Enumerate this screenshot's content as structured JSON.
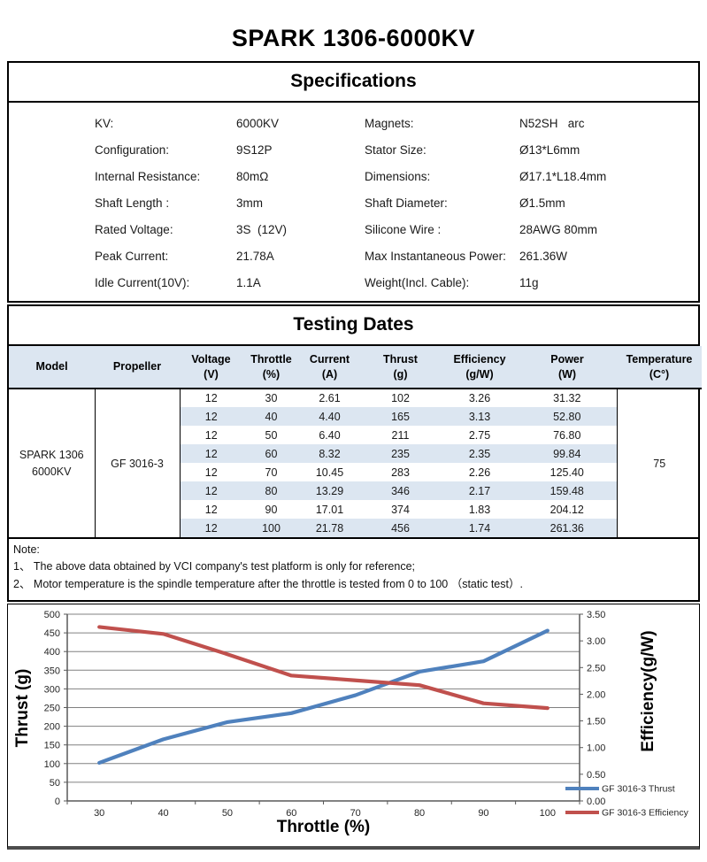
{
  "page": {
    "title": "SPARK 1306-6000KV"
  },
  "specifications": {
    "header": "Specifications",
    "rows": [
      {
        "l_label": "KV:",
        "l_value": "6000KV",
        "r_label": "Magnets:",
        "r_value": "N52SH   arc"
      },
      {
        "l_label": "Configuration:",
        "l_value": "9S12P",
        "r_label": "Stator Size:",
        "r_value": "Ø13*L6mm"
      },
      {
        "l_label": "Internal Resistance:",
        "l_value": "80mΩ",
        "r_label": "Dimensions:",
        "r_value": "Ø17.1*L18.4mm"
      },
      {
        "l_label": "Shaft Length :",
        "l_value": "3mm",
        "r_label": "Shaft Diameter:",
        "r_value": "Ø1.5mm"
      },
      {
        "l_label": "Rated Voltage:",
        "l_value": "3S  (12V)",
        "r_label": "Silicone Wire :",
        "r_value": "28AWG 80mm"
      },
      {
        "l_label": "Peak Current:",
        "l_value": "21.78A",
        "r_label": "Max Instantaneous Power:",
        "r_value": "261.36W"
      },
      {
        "l_label": "Idle Current(10V):",
        "l_value": "1.1A",
        "r_label": "Weight(Incl. Cable):",
        "r_value": "11g"
      }
    ]
  },
  "testing": {
    "header": "Testing Dates",
    "columns": [
      {
        "l1": "Model",
        "l2": ""
      },
      {
        "l1": "Propeller",
        "l2": ""
      },
      {
        "l1": "Voltage",
        "l2": "(V)"
      },
      {
        "l1": "Throttle",
        "l2": "(%)"
      },
      {
        "l1": "Current",
        "l2": "(A)"
      },
      {
        "l1": "Thrust",
        "l2": "(g)"
      },
      {
        "l1": "Efficiency",
        "l2": "(g/W)"
      },
      {
        "l1": "Power",
        "l2": "(W)"
      },
      {
        "l1": "Temperature",
        "l2": "(C°)"
      }
    ],
    "model_line1": "SPARK 1306",
    "model_line2": "6000KV",
    "propeller": "GF 3016-3",
    "temperature": "75",
    "rows": [
      [
        "12",
        "30",
        "2.61",
        "102",
        "3.26",
        "31.32"
      ],
      [
        "12",
        "40",
        "4.40",
        "165",
        "3.13",
        "52.80"
      ],
      [
        "12",
        "50",
        "6.40",
        "211",
        "2.75",
        "76.80"
      ],
      [
        "12",
        "60",
        "8.32",
        "235",
        "2.35",
        "99.84"
      ],
      [
        "12",
        "70",
        "10.45",
        "283",
        "2.26",
        "125.40"
      ],
      [
        "12",
        "80",
        "13.29",
        "346",
        "2.17",
        "159.48"
      ],
      [
        "12",
        "90",
        "17.01",
        "374",
        "1.83",
        "204.12"
      ],
      [
        "12",
        "100",
        "21.78",
        "456",
        "1.74",
        "261.36"
      ]
    ]
  },
  "note": {
    "title": "Note:",
    "lines": [
      "1、 The above data obtained by VCI company's test platform is only for reference;",
      "2、 Motor temperature is the spindle temperature after the throttle is tested from 0 to 100 （static test）."
    ]
  },
  "chart_data": {
    "type": "line",
    "x": [
      30,
      40,
      50,
      60,
      70,
      80,
      90,
      100
    ],
    "series": [
      {
        "name": "GF 3016-3 Thrust",
        "axis": "left",
        "color": "#4F81BD",
        "values": [
          102,
          165,
          211,
          235,
          283,
          346,
          374,
          456
        ]
      },
      {
        "name": "GF 3016-3 Efficiency",
        "axis": "right",
        "color": "#C0504D",
        "values": [
          3.26,
          3.13,
          2.75,
          2.35,
          2.26,
          2.17,
          1.83,
          1.74
        ]
      }
    ],
    "xlabel": "Throttle  (%)",
    "ylabel_left": "Thrust  (g)",
    "ylabel_right": "Efficiency(g/W)",
    "ylim_left": [
      0,
      500
    ],
    "ystep_left": 50,
    "ylim_right": [
      0,
      3.5
    ],
    "ystep_right": 0.5,
    "grid": true,
    "gridline_color": "#808080",
    "legend_position": "bottom-right"
  },
  "colors": {
    "table_header_bg": "#DCE6F1",
    "stripe_bg": "#DCE6F1",
    "thrust_line": "#4F81BD",
    "efficiency_line": "#C0504D"
  }
}
